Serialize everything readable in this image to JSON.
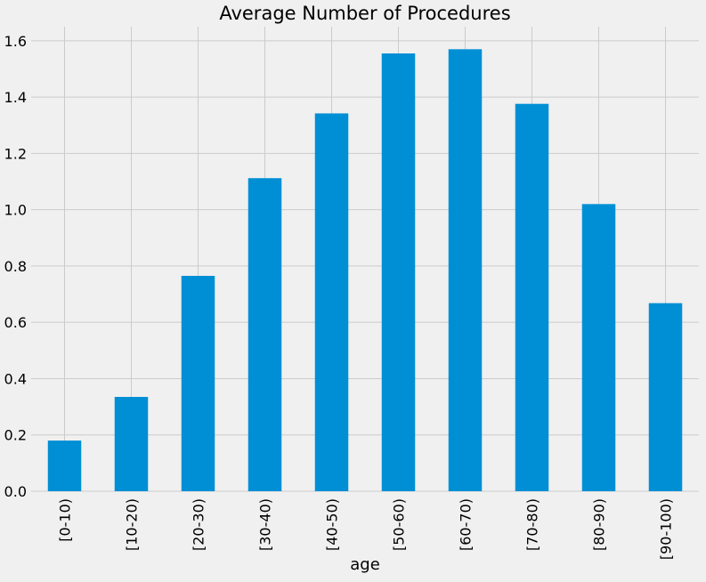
{
  "chart_data": {
    "type": "bar",
    "title": "Average Number of Procedures",
    "xlabel": "age",
    "ylabel": "",
    "categories": [
      "[0-10)",
      "[10-20)",
      "[20-30)",
      "[30-40)",
      "[40-50)",
      "[50-60)",
      "[60-70)",
      "[70-80)",
      "[80-90)",
      "[90-100)"
    ],
    "values": [
      0.18,
      0.335,
      0.765,
      1.112,
      1.342,
      1.555,
      1.57,
      1.376,
      1.02,
      0.668
    ],
    "ylim": [
      0,
      1.65
    ],
    "yticks": [
      0.0,
      0.2,
      0.4,
      0.6,
      0.8,
      1.0,
      1.2,
      1.4,
      1.6
    ],
    "ytick_labels": [
      "0.0",
      "0.2",
      "0.4",
      "0.6",
      "0.8",
      "1.0",
      "1.2",
      "1.4",
      "1.6"
    ],
    "grid": true,
    "legend": "none",
    "colors": {
      "background": "#f0f0f0",
      "bar": "#008fd5",
      "grid": "#cbcbcb"
    }
  }
}
